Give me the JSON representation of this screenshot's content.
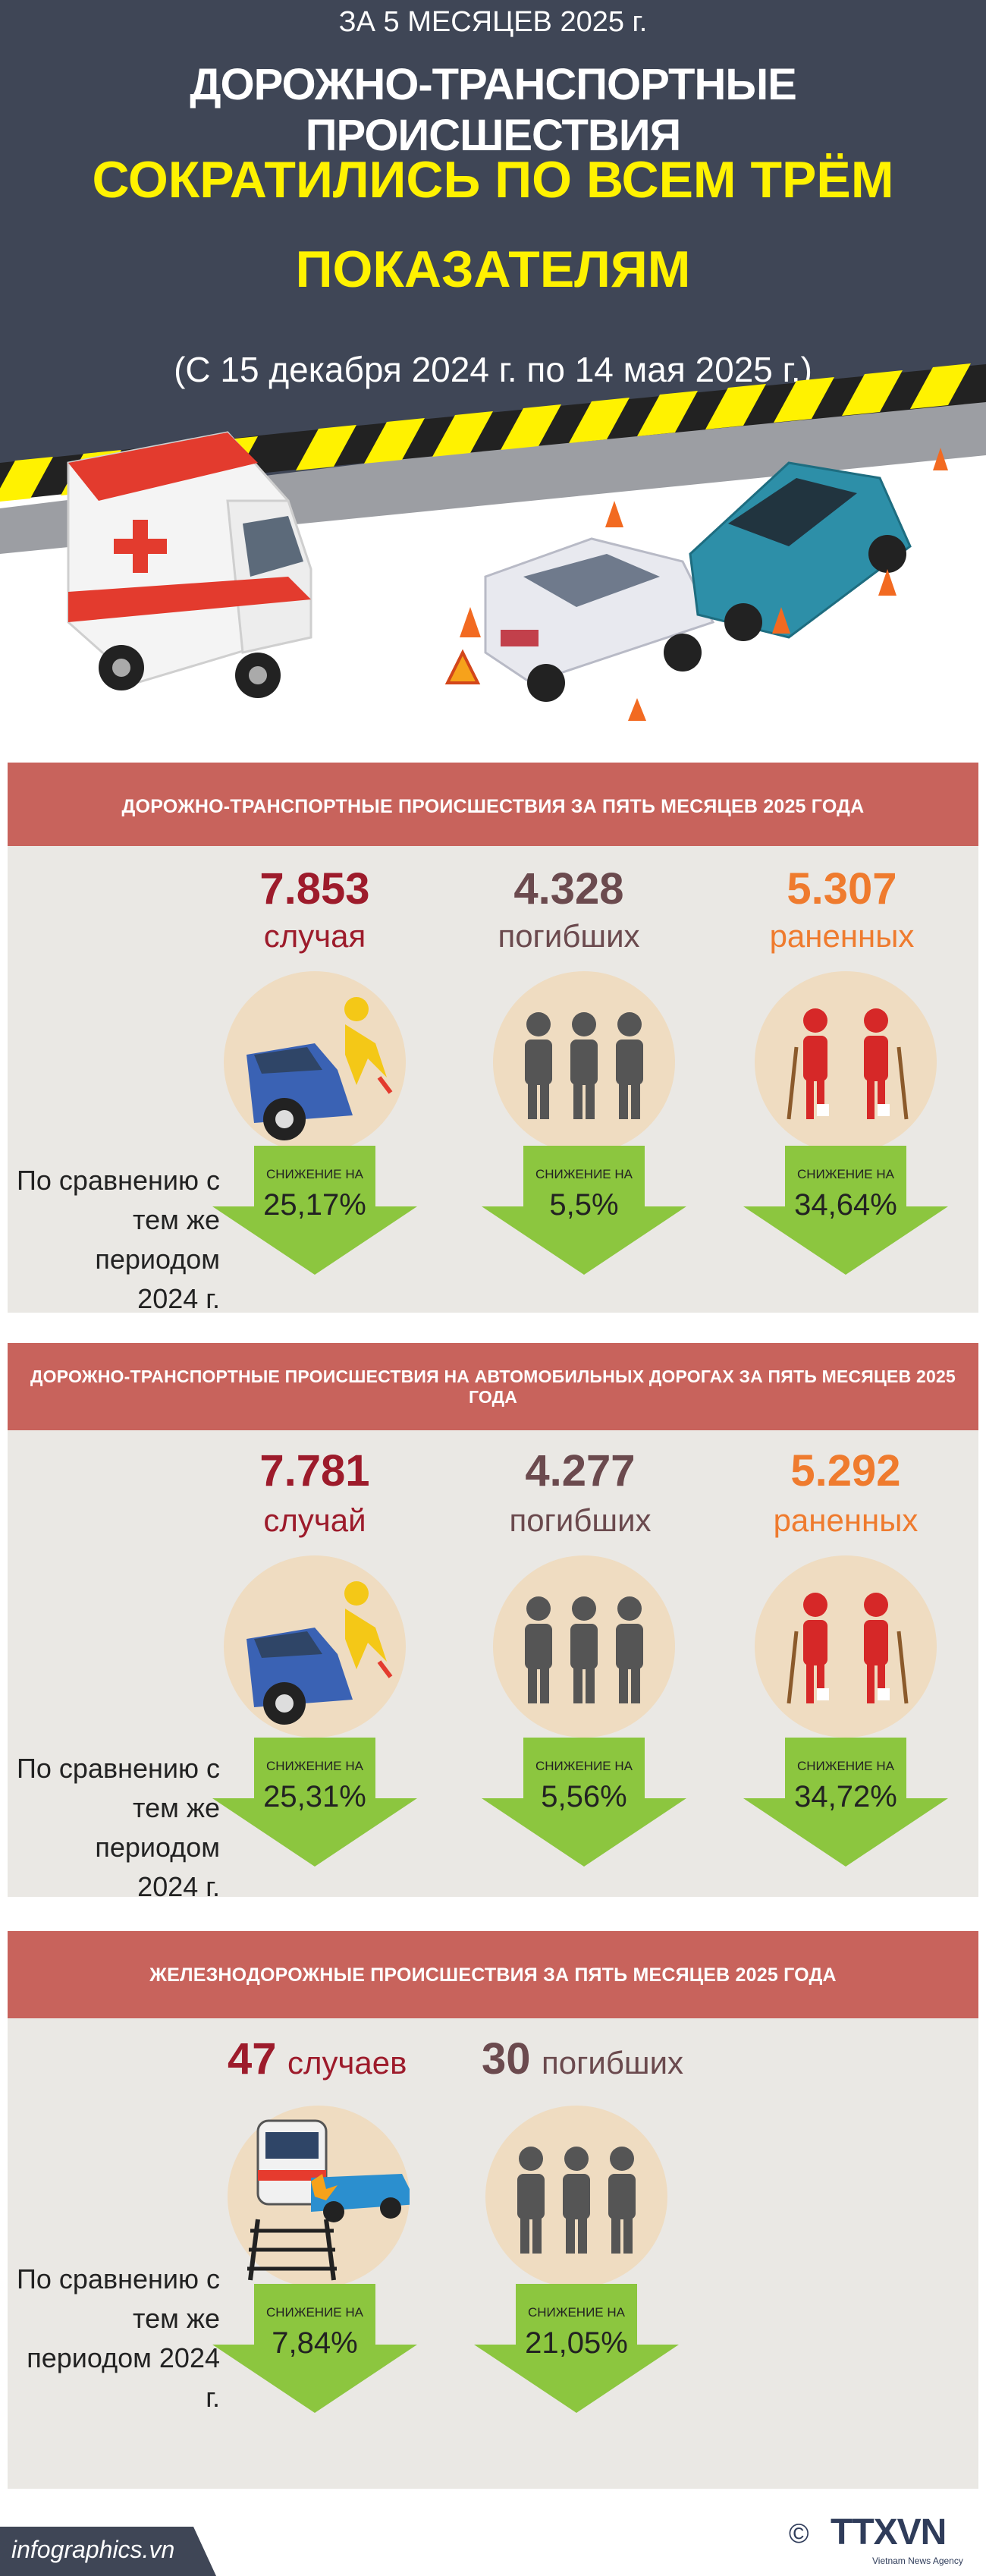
{
  "header": {
    "period_top": "ЗА 5 МЕСЯЦЕВ 2025 г.",
    "title_line1": "ДОРОЖНО-ТРАНСПОРТНЫЕ ПРОИСШЕСТВИЯ",
    "title_line2": "СОКРАТИЛИСЬ ПО ВСЕМ ТРЁМ",
    "title_line3": "ПОКАЗАТЕЛЯМ",
    "date_range": "(С 15 декабря 2024 г. по 14 мая 2025 г.)"
  },
  "sections": [
    {
      "title": "ДОРОЖНО-ТРАНСПОРТНЫЕ ПРОИСШЕСТВИЯ ЗА ПЯТЬ МЕСЯЦЕВ 2025 ГОДА",
      "compare": [
        "По сравнению с",
        "тем же периодом",
        "2024 г."
      ],
      "stats": [
        {
          "value": "7.853",
          "label": "случая",
          "decrease_label": "СНИЖЕНИЕ НА",
          "decrease": "25,17%"
        },
        {
          "value": "4.328",
          "label": "погибших",
          "decrease_label": "СНИЖЕНИЕ НА",
          "decrease": "5,5%"
        },
        {
          "value": "5.307",
          "label": "раненных",
          "decrease_label": "СНИЖЕНИЕ НА",
          "decrease": "34,64%"
        }
      ]
    },
    {
      "title": "ДОРОЖНО-ТРАНСПОРТНЫЕ ПРОИСШЕСТВИЯ НА АВТОМОБИЛЬНЫХ ДОРОГАХ ЗА ПЯТЬ МЕСЯЦЕВ 2025 ГОДА",
      "compare": [
        "По сравнению с",
        "тем же периодом",
        "2024 г."
      ],
      "stats": [
        {
          "value": "7.781",
          "label": "случай",
          "decrease_label": "СНИЖЕНИЕ НА",
          "decrease": "25,31%"
        },
        {
          "value": "4.277",
          "label": "погибших",
          "decrease_label": "СНИЖЕНИЕ НА",
          "decrease": "5,56%"
        },
        {
          "value": "5.292",
          "label": "раненных",
          "decrease_label": "СНИЖЕНИЕ НА",
          "decrease": "34,72%"
        }
      ]
    },
    {
      "title": "ЖЕЛЕЗНОДОРОЖНЫЕ ПРОИСШЕСТВИЯ ЗА ПЯТЬ МЕСЯЦЕВ 2025 ГОДА",
      "compare": [
        "По сравнению с",
        "тем же",
        "периодом 2024 г."
      ],
      "stats": [
        {
          "value": "47",
          "label": "случаев",
          "decrease_label": "СНИЖЕНИЕ НА",
          "decrease": "7,84%"
        },
        {
          "value": "30",
          "label": "погибших",
          "decrease_label": "СНИЖЕНИЕ НА",
          "decrease": "21,05%"
        }
      ]
    }
  ],
  "footer": {
    "site": "infographics.vn",
    "copyright": "©",
    "logo_text": "TTXVN",
    "logo_sub": "Vietnam News Agency"
  },
  "colors": {
    "header_bg": "#3f4656",
    "title_yellow": "#fff200",
    "section_bar": "#c8635c",
    "panel_bg": "#eae8e4",
    "value_red": "#9d1b2b",
    "value_brown": "#6b4a4e",
    "value_orange": "#ef7b2e",
    "arrow_green": "#8cc63f"
  }
}
